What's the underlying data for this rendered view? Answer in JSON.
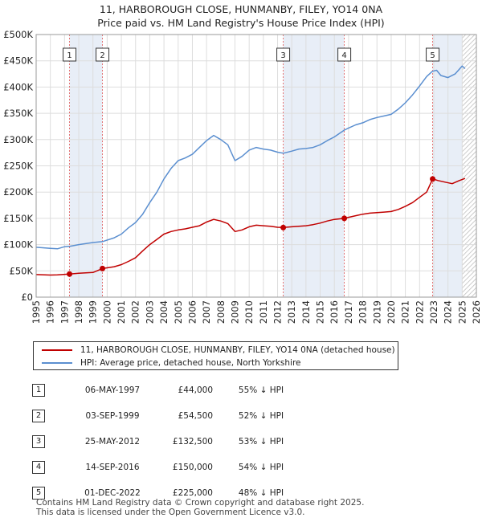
{
  "title_line1": "11, HARBOROUGH CLOSE, HUNMANBY, FILEY, YO14 0NA",
  "title_line2": "Price paid vs. HM Land Registry's House Price Index (HPI)",
  "colors": {
    "hpi": "#5b8fd0",
    "price": "#c00000",
    "shade": "#e8eef7",
    "grid": "#dddddd"
  },
  "chart_data": {
    "type": "line",
    "xlim": [
      1995,
      2026
    ],
    "ylim": [
      0,
      500000
    ],
    "x_ticks": [
      1995,
      1996,
      1997,
      1998,
      1999,
      2000,
      2001,
      2002,
      2003,
      2004,
      2005,
      2006,
      2007,
      2008,
      2009,
      2010,
      2011,
      2012,
      2013,
      2014,
      2015,
      2016,
      2017,
      2018,
      2019,
      2020,
      2021,
      2022,
      2023,
      2024,
      2025,
      2026
    ],
    "y_ticks": [
      0,
      50000,
      100000,
      150000,
      200000,
      250000,
      300000,
      350000,
      400000,
      450000,
      500000
    ],
    "y_tick_labels": [
      "£0",
      "£50K",
      "£100K",
      "£150K",
      "£200K",
      "£250K",
      "£300K",
      "£350K",
      "£400K",
      "£450K",
      "£500K"
    ],
    "future_from": 2025.0,
    "series": [
      {
        "name": "HPI: Average price, detached house, North Yorkshire",
        "key": "hpi",
        "points": [
          [
            1995.0,
            95000
          ],
          [
            1996.0,
            93000
          ],
          [
            1996.5,
            92000
          ],
          [
            1997.0,
            96000
          ],
          [
            1997.4,
            97000
          ],
          [
            1998.0,
            100000
          ],
          [
            1999.0,
            104000
          ],
          [
            1999.7,
            106000
          ],
          [
            2000.5,
            113000
          ],
          [
            2001.0,
            120000
          ],
          [
            2001.5,
            132000
          ],
          [
            2002.0,
            142000
          ],
          [
            2002.5,
            158000
          ],
          [
            2003.0,
            180000
          ],
          [
            2003.5,
            200000
          ],
          [
            2004.0,
            225000
          ],
          [
            2004.5,
            245000
          ],
          [
            2005.0,
            260000
          ],
          [
            2005.5,
            265000
          ],
          [
            2006.0,
            272000
          ],
          [
            2006.5,
            285000
          ],
          [
            2007.0,
            298000
          ],
          [
            2007.5,
            308000
          ],
          [
            2008.0,
            300000
          ],
          [
            2008.5,
            290000
          ],
          [
            2009.0,
            260000
          ],
          [
            2009.5,
            268000
          ],
          [
            2010.0,
            280000
          ],
          [
            2010.5,
            285000
          ],
          [
            2011.0,
            282000
          ],
          [
            2011.5,
            280000
          ],
          [
            2012.0,
            276000
          ],
          [
            2012.4,
            274000
          ],
          [
            2013.0,
            278000
          ],
          [
            2013.5,
            282000
          ],
          [
            2014.0,
            283000
          ],
          [
            2014.5,
            285000
          ],
          [
            2015.0,
            290000
          ],
          [
            2015.5,
            298000
          ],
          [
            2016.0,
            305000
          ],
          [
            2016.7,
            318000
          ],
          [
            2017.0,
            322000
          ],
          [
            2017.5,
            328000
          ],
          [
            2018.0,
            332000
          ],
          [
            2018.5,
            338000
          ],
          [
            2019.0,
            342000
          ],
          [
            2019.5,
            345000
          ],
          [
            2020.0,
            348000
          ],
          [
            2020.5,
            358000
          ],
          [
            2021.0,
            370000
          ],
          [
            2021.5,
            385000
          ],
          [
            2022.0,
            402000
          ],
          [
            2022.5,
            420000
          ],
          [
            2022.9,
            430000
          ],
          [
            2023.2,
            432000
          ],
          [
            2023.5,
            422000
          ],
          [
            2024.0,
            418000
          ],
          [
            2024.5,
            425000
          ],
          [
            2025.0,
            440000
          ],
          [
            2025.2,
            435000
          ]
        ]
      },
      {
        "name": "11, HARBOROUGH CLOSE, HUNMANBY, FILEY, YO14 0NA (detached house)",
        "key": "price",
        "points": [
          [
            1995.0,
            43000
          ],
          [
            1996.0,
            42000
          ],
          [
            1996.5,
            42500
          ],
          [
            1997.35,
            44000
          ],
          [
            1998.0,
            45500
          ],
          [
            1999.0,
            47000
          ],
          [
            1999.67,
            54500
          ],
          [
            2000.5,
            58000
          ],
          [
            2001.0,
            62000
          ],
          [
            2001.5,
            68000
          ],
          [
            2002.0,
            75000
          ],
          [
            2002.5,
            88000
          ],
          [
            2003.0,
            100000
          ],
          [
            2003.5,
            110000
          ],
          [
            2004.0,
            120000
          ],
          [
            2004.5,
            125000
          ],
          [
            2005.0,
            128000
          ],
          [
            2005.5,
            130000
          ],
          [
            2006.0,
            133000
          ],
          [
            2006.5,
            136000
          ],
          [
            2007.0,
            143000
          ],
          [
            2007.5,
            148000
          ],
          [
            2008.0,
            145000
          ],
          [
            2008.5,
            140000
          ],
          [
            2009.0,
            125000
          ],
          [
            2009.5,
            128000
          ],
          [
            2010.0,
            134000
          ],
          [
            2010.5,
            137000
          ],
          [
            2011.0,
            136000
          ],
          [
            2011.5,
            135000
          ],
          [
            2012.0,
            133000
          ],
          [
            2012.4,
            132500
          ],
          [
            2013.0,
            134000
          ],
          [
            2013.5,
            135000
          ],
          [
            2014.0,
            136000
          ],
          [
            2014.5,
            138000
          ],
          [
            2015.0,
            141000
          ],
          [
            2015.5,
            145000
          ],
          [
            2016.0,
            148000
          ],
          [
            2016.7,
            150000
          ],
          [
            2017.0,
            152000
          ],
          [
            2017.5,
            155000
          ],
          [
            2018.0,
            158000
          ],
          [
            2018.5,
            160000
          ],
          [
            2019.0,
            161000
          ],
          [
            2019.5,
            162000
          ],
          [
            2020.0,
            163000
          ],
          [
            2020.5,
            167000
          ],
          [
            2021.0,
            173000
          ],
          [
            2021.5,
            180000
          ],
          [
            2022.0,
            190000
          ],
          [
            2022.5,
            200000
          ],
          [
            2022.92,
            225000
          ],
          [
            2023.3,
            222000
          ],
          [
            2023.8,
            219000
          ],
          [
            2024.3,
            216000
          ],
          [
            2024.8,
            222000
          ],
          [
            2025.2,
            226000
          ]
        ]
      }
    ],
    "sales": [
      {
        "label": "1",
        "x": 1997.35,
        "price": 44000
      },
      {
        "label": "2",
        "x": 1999.67,
        "price": 54500
      },
      {
        "label": "3",
        "x": 2012.4,
        "price": 132500
      },
      {
        "label": "4",
        "x": 2016.7,
        "price": 150000
      },
      {
        "label": "5",
        "x": 2022.92,
        "price": 225000
      }
    ]
  },
  "legend": {
    "price_label": "11, HARBOROUGH CLOSE, HUNMANBY, FILEY, YO14 0NA (detached house)",
    "hpi_label": "HPI: Average price, detached house, North Yorkshire"
  },
  "table": [
    {
      "num": "1",
      "date": "06-MAY-1997",
      "price": "£44,000",
      "hpi": "55% ↓ HPI"
    },
    {
      "num": "2",
      "date": "03-SEP-1999",
      "price": "£54,500",
      "hpi": "52% ↓ HPI"
    },
    {
      "num": "3",
      "date": "25-MAY-2012",
      "price": "£132,500",
      "hpi": "53% ↓ HPI"
    },
    {
      "num": "4",
      "date": "14-SEP-2016",
      "price": "£150,000",
      "hpi": "54% ↓ HPI"
    },
    {
      "num": "5",
      "date": "01-DEC-2022",
      "price": "£225,000",
      "hpi": "48% ↓ HPI"
    }
  ],
  "footer_line1": "Contains HM Land Registry data © Crown copyright and database right 2025.",
  "footer_line2": "This data is licensed under the Open Government Licence v3.0."
}
